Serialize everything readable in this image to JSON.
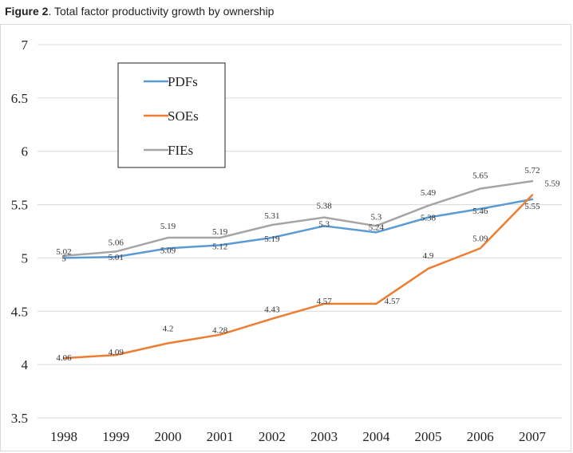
{
  "figure": {
    "prefix": "Figure 2",
    "caption": ". Total factor productivity growth by ownership"
  },
  "chart_data": {
    "type": "line",
    "title": "",
    "xlabel": "",
    "ylabel": "",
    "x": [
      "1998",
      "1999",
      "2000",
      "2001",
      "2002",
      "2003",
      "2004",
      "2005",
      "2006",
      "2007"
    ],
    "ylim": [
      3.5,
      7
    ],
    "yticks": [
      "3.5",
      "4",
      "4.5",
      "5",
      "5.5",
      "6",
      "6.5",
      "7"
    ],
    "grid": "horizontal",
    "legend": "top-left",
    "series": [
      {
        "name": "PDFs",
        "color": "#5b9bd5",
        "values": [
          5.0,
          5.01,
          5.09,
          5.12,
          5.19,
          5.3,
          5.24,
          5.38,
          5.46,
          5.55
        ],
        "labels": [
          "5",
          "5.01",
          "5.09",
          "5.12",
          "5.19",
          "5.3",
          "5.24",
          "5.38",
          "5.46",
          "5.55"
        ]
      },
      {
        "name": "SOEs",
        "color": "#ed7d31",
        "values": [
          4.06,
          4.09,
          4.2,
          4.28,
          4.43,
          4.57,
          4.57,
          4.9,
          5.09,
          5.59
        ],
        "labels": [
          "4.06",
          "4.09",
          "4.2",
          "4.28",
          "4.43",
          "4.57",
          "4.57",
          "4.9",
          "5.09",
          "5.59"
        ]
      },
      {
        "name": "FIEs",
        "color": "#a5a5a5",
        "values": [
          5.02,
          5.06,
          5.19,
          5.19,
          5.31,
          5.38,
          5.3,
          5.49,
          5.65,
          5.72
        ],
        "labels": [
          "5.02",
          "5.06",
          "5.19",
          "5.19",
          "5.31",
          "5.38",
          "5.3",
          "5.49",
          "5.65",
          "5.72"
        ]
      }
    ]
  }
}
